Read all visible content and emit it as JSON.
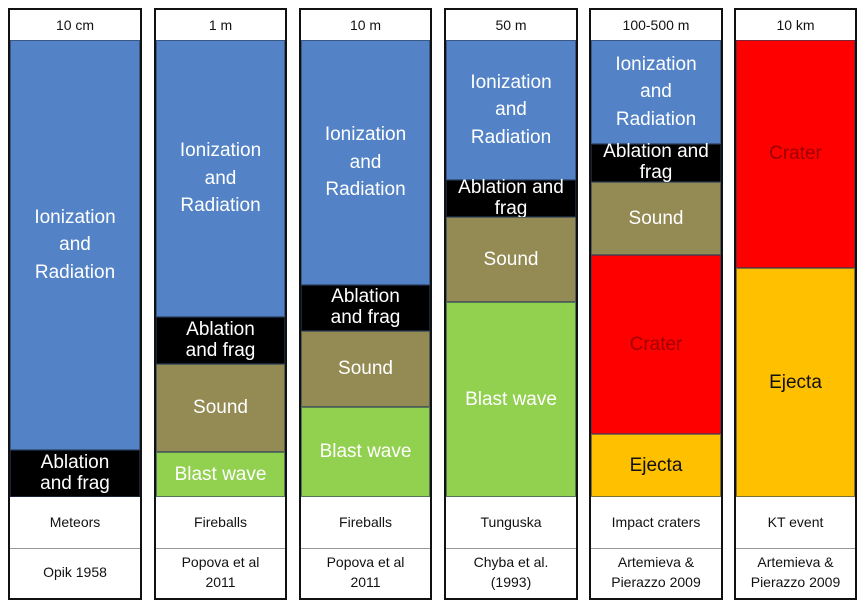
{
  "columns": [
    {
      "size": "10 cm",
      "name": "Meteors",
      "source": "Opik 1958",
      "segments": [
        {
          "label": "Ionization\nand\nRadiation",
          "color": "#5383c6",
          "text_color": "#ffffff"
        },
        {
          "label": "Ablation\nand frag",
          "color": "#000000",
          "text_color": "#ffffff"
        }
      ]
    },
    {
      "size": "1 m",
      "name": "Fireballs",
      "source": "Popova et al\n2011",
      "segments": [
        {
          "label": "Ionization\nand\nRadiation",
          "color": "#5383c6",
          "text_color": "#ffffff"
        },
        {
          "label": "Ablation\nand frag",
          "color": "#000000",
          "text_color": "#ffffff"
        },
        {
          "label": "Sound",
          "color": "#948a54",
          "text_color": "#ffffff"
        },
        {
          "label": "Blast wave",
          "color": "#92d050",
          "text_color": "#ffffff"
        }
      ]
    },
    {
      "size": "10 m",
      "name": "Fireballs",
      "source": "Popova et al\n2011",
      "segments": [
        {
          "label": "Ionization\nand\nRadiation",
          "color": "#5383c6",
          "text_color": "#ffffff"
        },
        {
          "label": "Ablation\nand frag",
          "color": "#000000",
          "text_color": "#ffffff"
        },
        {
          "label": "Sound",
          "color": "#948a54",
          "text_color": "#ffffff"
        },
        {
          "label": "Blast wave",
          "color": "#92d050",
          "text_color": "#ffffff"
        }
      ]
    },
    {
      "size": "50 m",
      "name": "Tunguska",
      "source": "Chyba et al.\n(1993)",
      "segments": [
        {
          "label": "Ionization\nand\nRadiation",
          "color": "#5383c6",
          "text_color": "#ffffff"
        },
        {
          "label": "Ablation and\nfrag",
          "color": "#000000",
          "text_color": "#ffffff"
        },
        {
          "label": "Sound",
          "color": "#948a54",
          "text_color": "#ffffff"
        },
        {
          "label": "Blast wave",
          "color": "#92d050",
          "text_color": "#ffffff"
        }
      ]
    },
    {
      "size": "100-500 m",
      "name": "Impact craters",
      "source": "Artemieva &\nPierazzo 2009",
      "segments": [
        {
          "label": "Ionization\nand\nRadiation",
          "color": "#5383c6",
          "text_color": "#ffffff"
        },
        {
          "label": "Ablation and\nfrag",
          "color": "#000000",
          "text_color": "#ffffff"
        },
        {
          "label": "Sound",
          "color": "#948a54",
          "text_color": "#ffffff"
        },
        {
          "label": "Crater",
          "color": "#ff0000",
          "text_color": "#a00000"
        },
        {
          "label": "Ejecta",
          "color": "#ffc000",
          "text_color": "#111111"
        }
      ]
    },
    {
      "size": "10 km",
      "name": "KT event",
      "source": "Artemieva &\nPierazzo 2009",
      "segments": [
        {
          "label": "Crater",
          "color": "#ff0000",
          "text_color": "#a00000"
        },
        {
          "label": "Ejecta",
          "color": "#ffc000",
          "text_color": "#111111"
        }
      ]
    }
  ]
}
